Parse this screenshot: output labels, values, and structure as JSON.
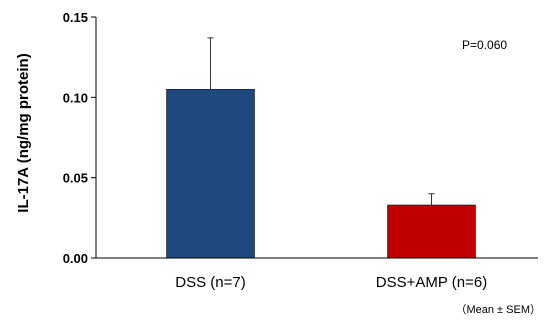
{
  "chart_data": {
    "type": "bar",
    "categories": [
      "DSS (n=7)",
      "DSS+AMP (n=6)"
    ],
    "values": [
      0.105,
      0.033
    ],
    "errors": [
      0.032,
      0.007
    ],
    "colors": [
      "#1F497D",
      "#C00000"
    ],
    "ylabel": "IL-17A (ng/mg protein)",
    "xlabel": "",
    "ylim": [
      0,
      0.15
    ],
    "yticks": [
      "0.00",
      "0.05",
      "0.10",
      "0.15"
    ],
    "ytick_values": [
      0,
      0.05,
      0.1,
      0.15
    ],
    "grid": false,
    "annotation": "P=0.060",
    "footnote": "（Mean ± SEM）"
  }
}
